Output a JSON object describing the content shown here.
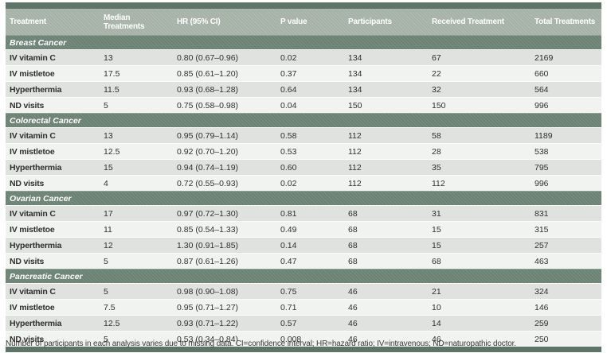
{
  "table": {
    "columns": [
      "Treatment",
      "Median Treatments",
      "HR (95% CI)",
      "P value",
      "Participants",
      "Received Treatment",
      "Total Treatments"
    ],
    "column_keys": [
      "treatment",
      "median-treatments",
      "hr-95-ci",
      "p-value",
      "participants",
      "received-treatment",
      "total-treatments"
    ],
    "sections": [
      {
        "name": "Breast Cancer",
        "rows": [
          [
            "IV vitamin C",
            "13",
            "0.80 (0.67–0.96)",
            "0.02",
            "134",
            "67",
            "2169"
          ],
          [
            "IV mistletoe",
            "17.5",
            "0.85 (0.61–1.20)",
            "0.37",
            "134",
            "22",
            "660"
          ],
          [
            "Hyperthermia",
            "11.5",
            "0.93 (0.68–1.28)",
            "0.64",
            "134",
            "32",
            "564"
          ],
          [
            "ND visits",
            "5",
            "0.75 (0.58–0.98)",
            "0.04",
            "150",
            "150",
            "996"
          ]
        ]
      },
      {
        "name": "Colorectal Cancer",
        "rows": [
          [
            "IV vitamin C",
            "13",
            "0.95 (0.79–1.14)",
            "0.58",
            "112",
            "58",
            "1189"
          ],
          [
            "IV mistletoe",
            "12.5",
            "0.92 (0.70–1.20)",
            "0.53",
            "112",
            "28",
            "538"
          ],
          [
            "Hyperthermia",
            "15",
            "0.94 (0.74–1.19)",
            "0.60",
            "112",
            "35",
            "795"
          ],
          [
            "ND visits",
            "4",
            "0.72 (0.55–0.93)",
            "0.02",
            "112",
            "112",
            "996"
          ]
        ]
      },
      {
        "name": "Ovarian Cancer",
        "rows": [
          [
            "IV vitamin C",
            "17",
            "0.97 (0.72–1.30)",
            "0.81",
            "68",
            "31",
            "831"
          ],
          [
            "IV mistletoe",
            "11",
            "0.85 (0.54–1.33)",
            "0.49",
            "68",
            "15",
            "315"
          ],
          [
            "Hyperthermia",
            "12",
            "1.30 (0.91–1.85)",
            "0.14",
            "68",
            "15",
            "257"
          ],
          [
            "ND visits",
            "5",
            "0.87 (0.61–1.26)",
            "0.47",
            "68",
            "68",
            "463"
          ]
        ]
      },
      {
        "name": "Pancreatic Cancer",
        "rows": [
          [
            "IV vitamin C",
            "5",
            "0.98 (0.90–1.08)",
            "0.75",
            "46",
            "21",
            "324"
          ],
          [
            "IV mistletoe",
            "7.5",
            "0.95 (0.71–1.27)",
            "0.71",
            "46",
            "10",
            "146"
          ],
          [
            "Hyperthermia",
            "12.5",
            "0.93 (0.71–1.22)",
            "0.57",
            "46",
            "14",
            "259"
          ],
          [
            "ND visits",
            "5",
            "0.53 (0.34–0.84)",
            "0.008",
            "46",
            "46",
            "250"
          ]
        ]
      }
    ],
    "footnote": "Number of participants in each analysis varies due to missing data. CI=confidence interval; HR=hazard ratio; IV=intravenous; ND=naturopathic doctor."
  },
  "colors": {
    "rule_dark_green": "#5d7468",
    "header_bg": "#a9b5ab",
    "section_bg": "#6f8678",
    "row_odd_bg": "#dfe2de",
    "row_even_bg": "#f1f3f0",
    "header_text": "#ffffff",
    "body_text": "#2f2f2f"
  }
}
